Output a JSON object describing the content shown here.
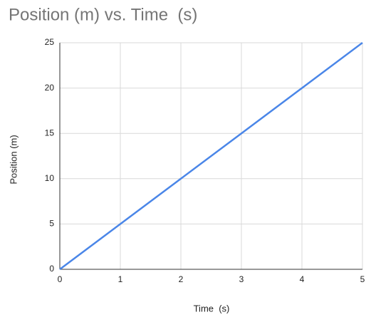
{
  "chart_data": {
    "type": "line",
    "title": "Position (m) vs. Time  (s)",
    "x_label": "Time  (s)",
    "y_label": "Position (m)",
    "x": [
      0,
      1,
      2,
      3,
      4,
      5
    ],
    "values": [
      0,
      5,
      10,
      15,
      20,
      25
    ],
    "color": "#4a86e8",
    "xlim": [
      0,
      5
    ],
    "xticks": [
      0,
      1,
      2,
      3,
      4,
      5
    ],
    "ylim": [
      0,
      25
    ],
    "yticks": [
      0,
      5,
      10,
      15,
      20,
      25
    ],
    "grid": true
  }
}
